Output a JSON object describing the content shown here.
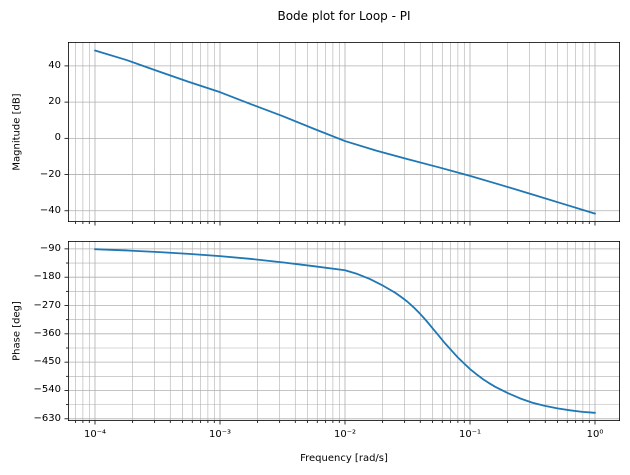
{
  "figure": {
    "title": "Bode plot for Loop - PI"
  },
  "colors": {
    "curve": "#1f77b4",
    "grid": "#b0b0b0",
    "frame": "#000000",
    "text": "#000000",
    "background": "#ffffff"
  },
  "chart_data": [
    {
      "type": "line",
      "name": "magnitude",
      "title": "Bode plot for Loop - PI",
      "ylabel": "Magnitude [dB]",
      "x_scale": "log",
      "xlim_log10": [
        -4.216,
        0.2
      ],
      "ylim": [
        -46.2,
        53.2
      ],
      "x_major_ticks": [
        -4,
        -3,
        -2,
        -1,
        0
      ],
      "ytick_values": [
        40,
        20,
        0,
        -20,
        -40
      ],
      "ytick_labels": [
        "40",
        "20",
        "0",
        "−20",
        "−40"
      ],
      "grid": "both-x-major-y",
      "x": [
        -4.0,
        -3.75,
        -3.5,
        -3.25,
        -3.0,
        -2.75,
        -2.5,
        -2.25,
        -2.0,
        -1.75,
        -1.5,
        -1.25,
        -1.0,
        -0.75,
        -0.5,
        -0.25,
        0.0
      ],
      "y": [
        48.5,
        43.3,
        37.2,
        31.2,
        25.5,
        18.8,
        12.3,
        5.3,
        -1.5,
        -6.8,
        -11.5,
        -16.0,
        -20.7,
        -25.8,
        -31.0,
        -36.3,
        -41.6
      ]
    },
    {
      "type": "line",
      "name": "phase",
      "ylabel": "Phase [deg]",
      "xlabel": "Frequency [rad/s]",
      "x_scale": "log",
      "xlim_log10": [
        -4.216,
        0.2
      ],
      "ylim": [
        -637,
        -65
      ],
      "x_major_ticks": [
        -4,
        -3,
        -2,
        -1,
        0
      ],
      "xtick_labels": [
        "10⁻⁴",
        "10⁻³",
        "10⁻²",
        "10⁻¹",
        "10⁰"
      ],
      "ytick_values": [
        -90,
        -180,
        -270,
        -360,
        -450,
        -540,
        -630
      ],
      "ytick_labels": [
        "−90",
        "−180",
        "−270",
        "−360",
        "−450",
        "−540",
        "−630"
      ],
      "y_minor_step": 45,
      "grid": "both",
      "x": [
        -4.0,
        -3.75,
        -3.5,
        -3.25,
        -3.0,
        -2.75,
        -2.5,
        -2.25,
        -2.0,
        -1.9,
        -1.8,
        -1.7,
        -1.6,
        -1.55,
        -1.5,
        -1.45,
        -1.4,
        -1.35,
        -1.3,
        -1.25,
        -1.2,
        -1.15,
        -1.1,
        -1.05,
        -1.0,
        -0.95,
        -0.9,
        -0.85,
        -0.8,
        -0.7,
        -0.6,
        -0.5,
        -0.4,
        -0.3,
        -0.2,
        -0.1,
        0.0
      ],
      "y": [
        -91,
        -95,
        -100,
        -106,
        -113,
        -122,
        -133,
        -145,
        -158,
        -170,
        -186,
        -206,
        -229,
        -243,
        -258,
        -276,
        -296,
        -318,
        -342,
        -366,
        -390,
        -412,
        -434,
        -453,
        -472,
        -488,
        -503,
        -516,
        -528,
        -548,
        -565,
        -579,
        -589,
        -597,
        -603,
        -608,
        -611
      ]
    }
  ]
}
